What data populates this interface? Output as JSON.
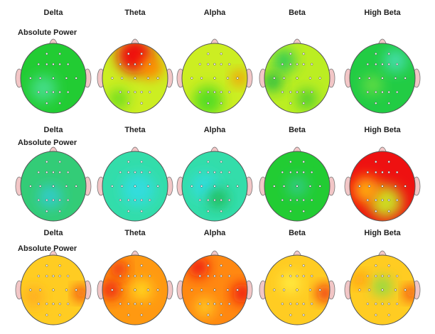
{
  "rows": [
    {
      "label": "Absolute Power",
      "bands": [
        "Delta",
        "Theta",
        "Alpha",
        "Beta",
        "High Beta"
      ]
    },
    {
      "label": "Absolute Power",
      "bands": [
        "Delta",
        "Theta",
        "Alpha",
        "Beta",
        "High Beta"
      ]
    },
    {
      "label": "Absolute Power",
      "bands": [
        "Delta",
        "Theta",
        "Alpha",
        "Beta",
        "High Beta"
      ]
    }
  ]
}
